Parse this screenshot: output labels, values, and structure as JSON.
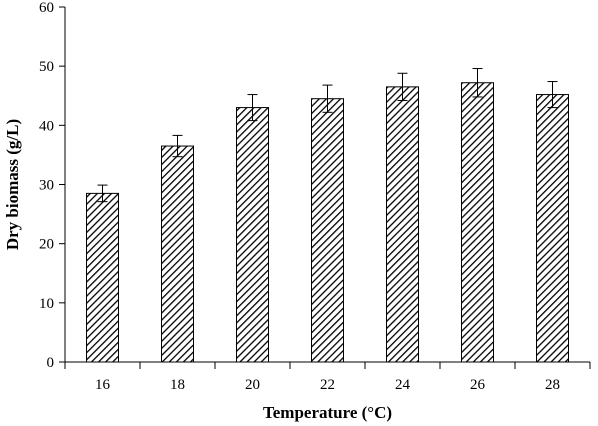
{
  "chart_data": {
    "type": "bar",
    "title": "",
    "xlabel": "Temperature (°C)",
    "ylabel": "Dry biomass (g/L)",
    "categories": [
      "16",
      "18",
      "20",
      "22",
      "24",
      "26",
      "28"
    ],
    "values": [
      28.5,
      36.5,
      43.0,
      44.5,
      46.5,
      47.2,
      45.2
    ],
    "errors": [
      1.4,
      1.8,
      2.2,
      2.3,
      2.3,
      2.4,
      2.2
    ],
    "ylim": [
      0,
      60
    ],
    "yticks": [
      "0",
      "10",
      "20",
      "30",
      "40",
      "50",
      "60"
    ],
    "grid": false,
    "legend": "none",
    "bar_fill": "hatched",
    "colors": {
      "bar_stroke": "#000000",
      "hatch": "#000000",
      "axis": "#000000"
    }
  }
}
